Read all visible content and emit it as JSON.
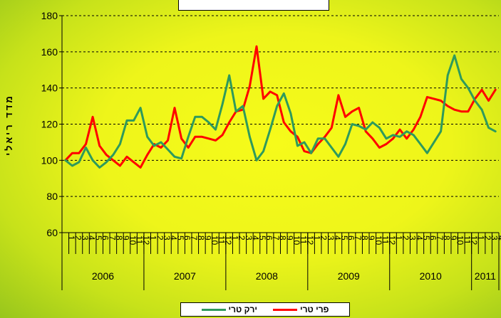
{
  "chart_data": {
    "type": "line",
    "title": "",
    "ylabel": "מדד ריאלי",
    "xlabel": "",
    "ylim": [
      60,
      180
    ],
    "yticks": [
      60,
      80,
      100,
      120,
      140,
      160,
      180
    ],
    "grid": true,
    "legend_position": "bottom",
    "years": [
      {
        "label": "2006",
        "months": 12
      },
      {
        "label": "2007",
        "months": 12
      },
      {
        "label": "2008",
        "months": 12
      },
      {
        "label": "2009",
        "months": 12
      },
      {
        "label": "2010",
        "months": 12
      },
      {
        "label": "2011",
        "months": 4
      }
    ],
    "x": [
      "1",
      "2",
      "3",
      "4",
      "5",
      "6",
      "7",
      "8",
      "9",
      "10",
      "11",
      "12",
      "1",
      "2",
      "3",
      "4",
      "5",
      "6",
      "7",
      "8",
      "9",
      "10",
      "11",
      "12",
      "1",
      "2",
      "3",
      "4",
      "5",
      "6",
      "7",
      "8",
      "9",
      "10",
      "11",
      "12",
      "1",
      "2",
      "3",
      "4",
      "5",
      "6",
      "7",
      "8",
      "9",
      "10",
      "11",
      "12",
      "1",
      "2",
      "3",
      "4",
      "5",
      "6",
      "7",
      "8",
      "9",
      "10",
      "11",
      "12",
      "1",
      "2",
      "3",
      "4"
    ],
    "series": [
      {
        "name": "ירק טרי",
        "color": "#2e9a5c",
        "values": [
          100,
          97,
          99,
          107,
          100,
          96,
          99,
          103,
          109,
          122,
          122,
          129,
          113,
          108,
          110,
          106,
          102,
          101,
          113,
          124,
          124,
          121,
          117,
          131,
          147,
          127,
          130,
          113,
          100,
          105,
          117,
          130,
          137,
          126,
          108,
          110,
          104,
          112,
          112,
          107,
          102,
          109,
          120,
          119,
          117,
          121,
          118,
          112,
          114,
          113,
          116,
          114,
          109,
          104,
          110,
          116,
          147,
          158,
          145,
          140,
          133,
          128,
          118,
          116
        ]
      },
      {
        "name": "פרי טרי",
        "color": "#ff0000",
        "values": [
          100,
          104,
          104,
          109,
          124,
          108,
          103,
          100,
          97,
          102,
          99,
          96,
          103,
          109,
          107,
          111,
          129,
          112,
          107,
          113,
          113,
          112,
          111,
          114,
          121,
          127,
          128,
          141,
          163,
          134,
          138,
          136,
          121,
          116,
          113,
          105,
          104,
          109,
          113,
          118,
          136,
          124,
          127,
          129,
          116,
          112,
          107,
          109,
          112,
          117,
          112,
          117,
          124,
          135,
          134,
          133,
          130,
          128,
          127,
          127,
          134,
          139,
          133,
          139
        ]
      }
    ]
  }
}
